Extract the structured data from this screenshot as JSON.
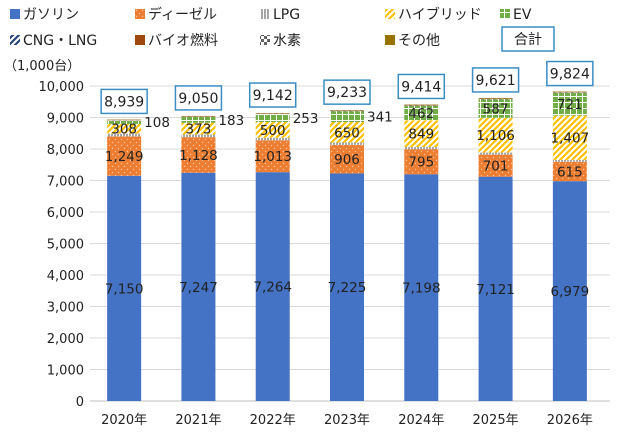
{
  "chart_data": {
    "type": "bar",
    "stacked": true,
    "title": "",
    "unit_label": "（1,000台）",
    "categories": [
      "2020年",
      "2021年",
      "2022年",
      "2023年",
      "2024年",
      "2025年",
      "2026年"
    ],
    "series": [
      {
        "name": "ガソリン",
        "color": "#4472c4",
        "pattern": "solid",
        "values": [
          7150,
          7247,
          7264,
          7225,
          7198,
          7121,
          6979
        ],
        "labels": [
          "7,150",
          "7,247",
          "7,264",
          "7,225",
          "7,198",
          "7,121",
          "6,979"
        ]
      },
      {
        "name": "ディーゼル",
        "color": "#ed7d31",
        "pattern": "dots",
        "values": [
          1249,
          1128,
          1013,
          906,
          795,
          701,
          615
        ],
        "labels": [
          "1,249",
          "1,128",
          "1,013",
          "906",
          "795",
          "701",
          "615"
        ]
      },
      {
        "name": "LPG",
        "color": "#a5a5a5",
        "pattern": "vstripes",
        "values": [
          90,
          85,
          80,
          75,
          70,
          65,
          60
        ],
        "labels": [
          null,
          null,
          null,
          null,
          null,
          null,
          null
        ]
      },
      {
        "name": "ハイブリッド",
        "color": "#ffc000",
        "pattern": "diag",
        "values": [
          308,
          373,
          500,
          650,
          849,
          1106,
          1407
        ],
        "labels": [
          "308",
          "373",
          "500",
          "650",
          "849",
          "1,106",
          "1,407"
        ]
      },
      {
        "name": "EV",
        "color": "#70ad47",
        "pattern": "grid",
        "values": [
          108,
          183,
          253,
          341,
          462,
          587,
          721
        ],
        "labels": [
          "108",
          "183",
          "253",
          "341",
          "462",
          "587",
          "721"
        ]
      },
      {
        "name": "CNG・LNG",
        "color": "#264478",
        "pattern": "diag",
        "values": [
          8,
          8,
          7,
          7,
          7,
          7,
          7
        ],
        "labels": [
          null,
          null,
          null,
          null,
          null,
          null,
          null
        ]
      },
      {
        "name": "バイオ燃料",
        "color": "#9e480e",
        "pattern": "solid",
        "values": [
          15,
          15,
          14,
          14,
          14,
          14,
          13
        ],
        "labels": [
          null,
          null,
          null,
          null,
          null,
          null,
          null
        ]
      },
      {
        "name": "水素",
        "color": "#636363",
        "pattern": "checker",
        "values": [
          2,
          3,
          4,
          5,
          6,
          7,
          8
        ],
        "labels": [
          null,
          null,
          null,
          null,
          null,
          null,
          null
        ]
      },
      {
        "name": "その他",
        "color": "#997300",
        "pattern": "solid",
        "values": [
          9,
          8,
          7,
          10,
          13,
          13,
          14
        ],
        "labels": [
          null,
          null,
          null,
          null,
          null,
          null,
          null
        ]
      }
    ],
    "totals": {
      "name": "合計",
      "values": [
        8939,
        9050,
        9142,
        9233,
        9414,
        9621,
        9824
      ],
      "labels": [
        "8,939",
        "9,050",
        "9,142",
        "9,233",
        "9,414",
        "9,621",
        "9,824"
      ]
    },
    "ylim": [
      0,
      10000
    ],
    "yticks": [
      0,
      1000,
      2000,
      3000,
      4000,
      5000,
      6000,
      7000,
      8000,
      9000,
      10000
    ],
    "ytick_labels": [
      "0",
      "1,000",
      "2,000",
      "3,000",
      "4,000",
      "5,000",
      "6,000",
      "7,000",
      "8,000",
      "9,000",
      "10,000"
    ],
    "grid": true,
    "legend_position": "top"
  }
}
